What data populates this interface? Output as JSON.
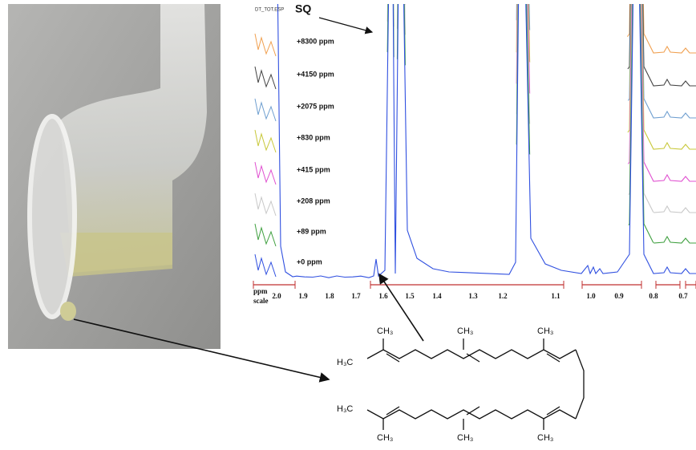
{
  "spectrum": {
    "file_label": "DT_TOT.ESP",
    "peak_label": "SQ",
    "offset_labels": [
      "+8300 ppm",
      "+4150 ppm",
      "+2075 ppm",
      "+830 ppm",
      "+415 ppm",
      "+208 ppm",
      "+89 ppm",
      "+0 ppm"
    ],
    "axis_label": [
      "ppm",
      "scale"
    ],
    "axis_ticks": [
      "2.0",
      "1.9",
      "1.8",
      "1.7",
      "1.6",
      "1.5",
      "1.4",
      "1.3",
      "1.2",
      "1.1",
      "1.0",
      "0.9",
      "0.8",
      "0.7"
    ]
  },
  "structure": {
    "labels": [
      "CH₃",
      "CH₃",
      "CH₃",
      "H₃C",
      "H₃C",
      "CH₃",
      "CH₃",
      "CH₃"
    ]
  }
}
